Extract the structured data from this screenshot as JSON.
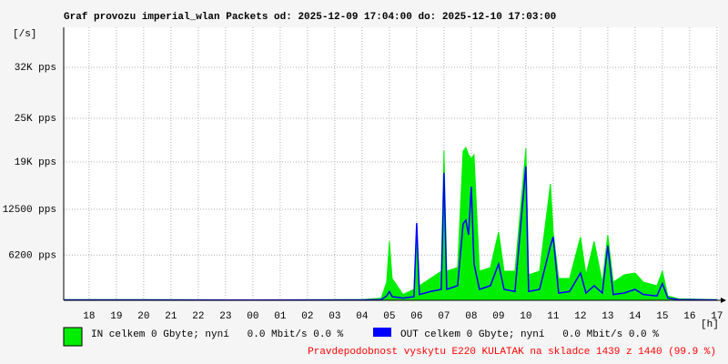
{
  "chart_data": {
    "type": "area",
    "title": "Graf provozu imperial_wlan Packets od: 2025-12-09 17:04:00 do: 2025-12-10 17:03:00",
    "y_label": "[/s]",
    "x_label": "[h]",
    "note": "Pravdepodobnost vyskytu E220 KULATAK na skladce 1439 z 1440 (99.9 %)",
    "grid": true,
    "xlim": [
      17.07,
      41.07
    ],
    "xticks": [
      {
        "value": 18,
        "label": "18"
      },
      {
        "value": 19,
        "label": "19"
      },
      {
        "value": 20,
        "label": "20"
      },
      {
        "value": 21,
        "label": "21"
      },
      {
        "value": 22,
        "label": "22"
      },
      {
        "value": 23,
        "label": "23"
      },
      {
        "value": 24,
        "label": "00"
      },
      {
        "value": 25,
        "label": "01"
      },
      {
        "value": 26,
        "label": "02"
      },
      {
        "value": 27,
        "label": "03"
      },
      {
        "value": 28,
        "label": "04"
      },
      {
        "value": 29,
        "label": "05"
      },
      {
        "value": 30,
        "label": "06"
      },
      {
        "value": 31,
        "label": "07"
      },
      {
        "value": 32,
        "label": "08"
      },
      {
        "value": 33,
        "label": "09"
      },
      {
        "value": 34,
        "label": "10"
      },
      {
        "value": 35,
        "label": "11"
      },
      {
        "value": 36,
        "label": "12"
      },
      {
        "value": 37,
        "label": "13"
      },
      {
        "value": 38,
        "label": "14"
      },
      {
        "value": 39,
        "label": "15"
      },
      {
        "value": 40,
        "label": "16"
      },
      {
        "value": 41,
        "label": "17"
      }
    ],
    "ylim": [
      0,
      37500
    ],
    "yticks": [
      {
        "value": 6200,
        "label": "6200 pps"
      },
      {
        "value": 12500,
        "label": "12500 pps"
      },
      {
        "value": 19000,
        "label": "19K pps"
      },
      {
        "value": 25000,
        "label": "25K pps"
      },
      {
        "value": 32000,
        "label": "32K pps"
      }
    ],
    "x": [
      17.1,
      20,
      24,
      28,
      28.7,
      28.9,
      29.0,
      29.1,
      29.5,
      29.9,
      30.0,
      30.1,
      30.5,
      30.9,
      31.0,
      31.1,
      31.5,
      31.7,
      31.8,
      31.9,
      32.0,
      32.1,
      32.3,
      32.7,
      33.0,
      33.2,
      33.6,
      34.0,
      34.1,
      34.5,
      34.9,
      35.0,
      35.2,
      35.6,
      36.0,
      36.2,
      36.5,
      36.8,
      37.0,
      37.2,
      37.6,
      38.0,
      38.3,
      38.8,
      39.0,
      39.2,
      39.6,
      41.0
    ],
    "series": [
      {
        "name": "IN celkem 0 Gbyte; nyní   0.0 Mbit/s 0.0 %",
        "color": "#00ee00",
        "values": [
          100,
          100,
          50,
          100,
          300,
          2500,
          8100,
          3000,
          800,
          1500,
          10600,
          2000,
          3000,
          4000,
          20600,
          4000,
          4500,
          20500,
          21000,
          20000,
          19500,
          20000,
          4000,
          4500,
          9400,
          4000,
          4000,
          20900,
          3500,
          4000,
          16000,
          9400,
          3000,
          3000,
          8700,
          3500,
          8100,
          2500,
          9000,
          2500,
          3500,
          3750,
          2500,
          2000,
          4000,
          600,
          200,
          100
        ]
      },
      {
        "name": "OUT celkem 0 Gbyte; nyní   0.0 Mbit/s 0.0 %",
        "color": "#0000ff",
        "values": [
          50,
          50,
          30,
          50,
          100,
          600,
          1200,
          500,
          300,
          500,
          10600,
          800,
          1200,
          1500,
          17500,
          1500,
          2000,
          10500,
          11000,
          9000,
          15600,
          5000,
          1500,
          2000,
          5000,
          1500,
          1200,
          18400,
          1200,
          1500,
          7500,
          8700,
          1000,
          1200,
          3750,
          1000,
          2000,
          1000,
          7500,
          800,
          1000,
          1500,
          800,
          600,
          2300,
          300,
          100,
          50
        ]
      }
    ]
  }
}
